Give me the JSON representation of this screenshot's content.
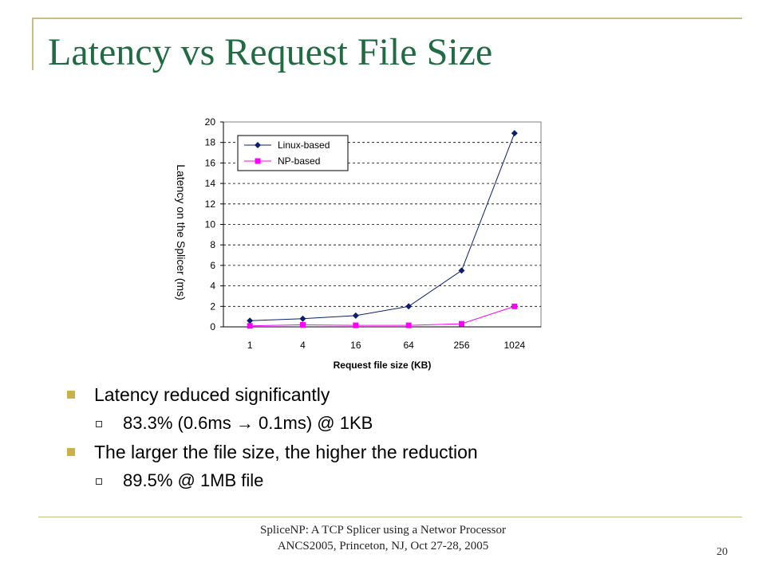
{
  "slide": {
    "title": "Latency vs Request File Size",
    "footer_line1": "SpliceNP: A TCP Splicer using a Networ Processor",
    "footer_line2": "ANCS2005, Princeton, NJ, Oct 27-28, 2005",
    "page_number": "20"
  },
  "bullets": [
    {
      "text": "Latency reduced significantly",
      "sub": [
        {
          "before": "83.3% (0.6ms ",
          "arrow": "→",
          "after": " 0.1ms) @ 1KB"
        }
      ]
    },
    {
      "text": "The larger the file size, the higher the reduction",
      "sub": [
        {
          "text": "89.5% @ 1MB file"
        }
      ]
    }
  ],
  "chart_data": {
    "type": "line",
    "categories": [
      "1",
      "4",
      "16",
      "64",
      "256",
      "1024"
    ],
    "xlabel": "Request file size (KB)",
    "ylabel": "Latency on the Splicer (ms)",
    "ylim": [
      0,
      20
    ],
    "yticks": [
      0,
      2,
      4,
      6,
      8,
      10,
      12,
      14,
      16,
      18,
      20
    ],
    "grid": "horizontal dashed",
    "legend_position": "top-left",
    "series": [
      {
        "name": "Linux-based",
        "color": "#0b1f6e",
        "marker": "diamond",
        "values": [
          0.6,
          0.8,
          1.1,
          2.0,
          5.5,
          18.9
        ]
      },
      {
        "name": "NP-based",
        "color": "#ff00ff",
        "marker": "square",
        "values": [
          0.1,
          0.2,
          0.15,
          0.15,
          0.3,
          2.0
        ]
      }
    ]
  }
}
